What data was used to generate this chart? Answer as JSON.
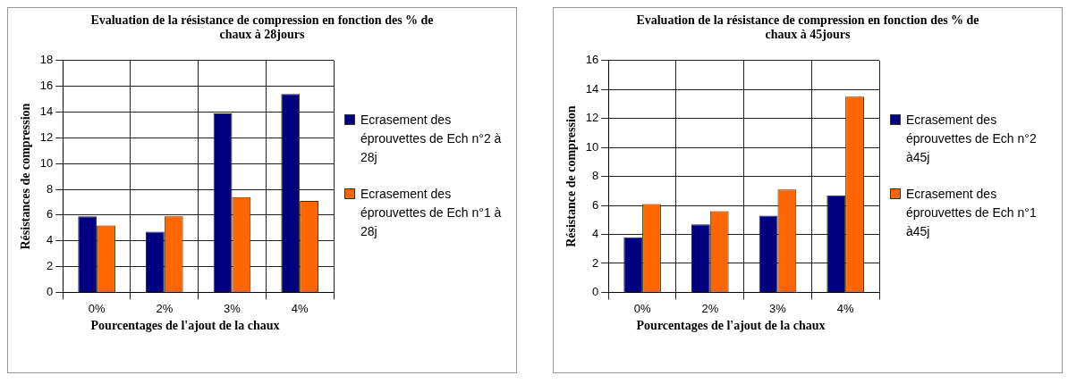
{
  "chart_data": [
    {
      "type": "bar",
      "title": "Evaluation de la résistance de compression en fonction des % de chaux à 28jours",
      "xlabel": "Pourcentages de l'ajout de la chaux",
      "ylabel": "Résistances de compression",
      "categories": [
        "0%",
        "2%",
        "3%",
        "4%"
      ],
      "series": [
        {
          "name": "Ecrasement des éprouvettes de Ech n°2 à 28j",
          "color": "#000080",
          "values": [
            5.9,
            4.7,
            13.9,
            15.4
          ]
        },
        {
          "name": "Ecrasement des éprouvettes de Ech n°1 à 28j",
          "color": "#ff6600",
          "values": [
            5.2,
            5.9,
            7.4,
            7.1
          ]
        }
      ],
      "ylim": [
        0,
        18
      ],
      "yticks": [
        0,
        2,
        4,
        6,
        8,
        10,
        12,
        14,
        16,
        18
      ],
      "grid": true,
      "legend": "right"
    },
    {
      "type": "bar",
      "title": "Evaluation de la résistance de compression en fonction des % de chaux à 45jours",
      "xlabel": "Pourcentages de l'ajout de la chaux",
      "ylabel": "Résistance de compression",
      "categories": [
        "0%",
        "2%",
        "3%",
        "4%"
      ],
      "series": [
        {
          "name": "Ecrasement des éprouvettes de Ech n°2 à45j",
          "color": "#000080",
          "values": [
            3.8,
            4.7,
            5.3,
            6.7
          ]
        },
        {
          "name": "Ecrasement des éprouvettes de Ech n°1 à45j",
          "color": "#ff6600",
          "values": [
            6.1,
            5.6,
            7.1,
            13.5
          ]
        }
      ],
      "ylim": [
        0,
        16
      ],
      "yticks": [
        0,
        2,
        4,
        6,
        8,
        10,
        12,
        14,
        16
      ],
      "grid": true,
      "legend": "right"
    }
  ]
}
